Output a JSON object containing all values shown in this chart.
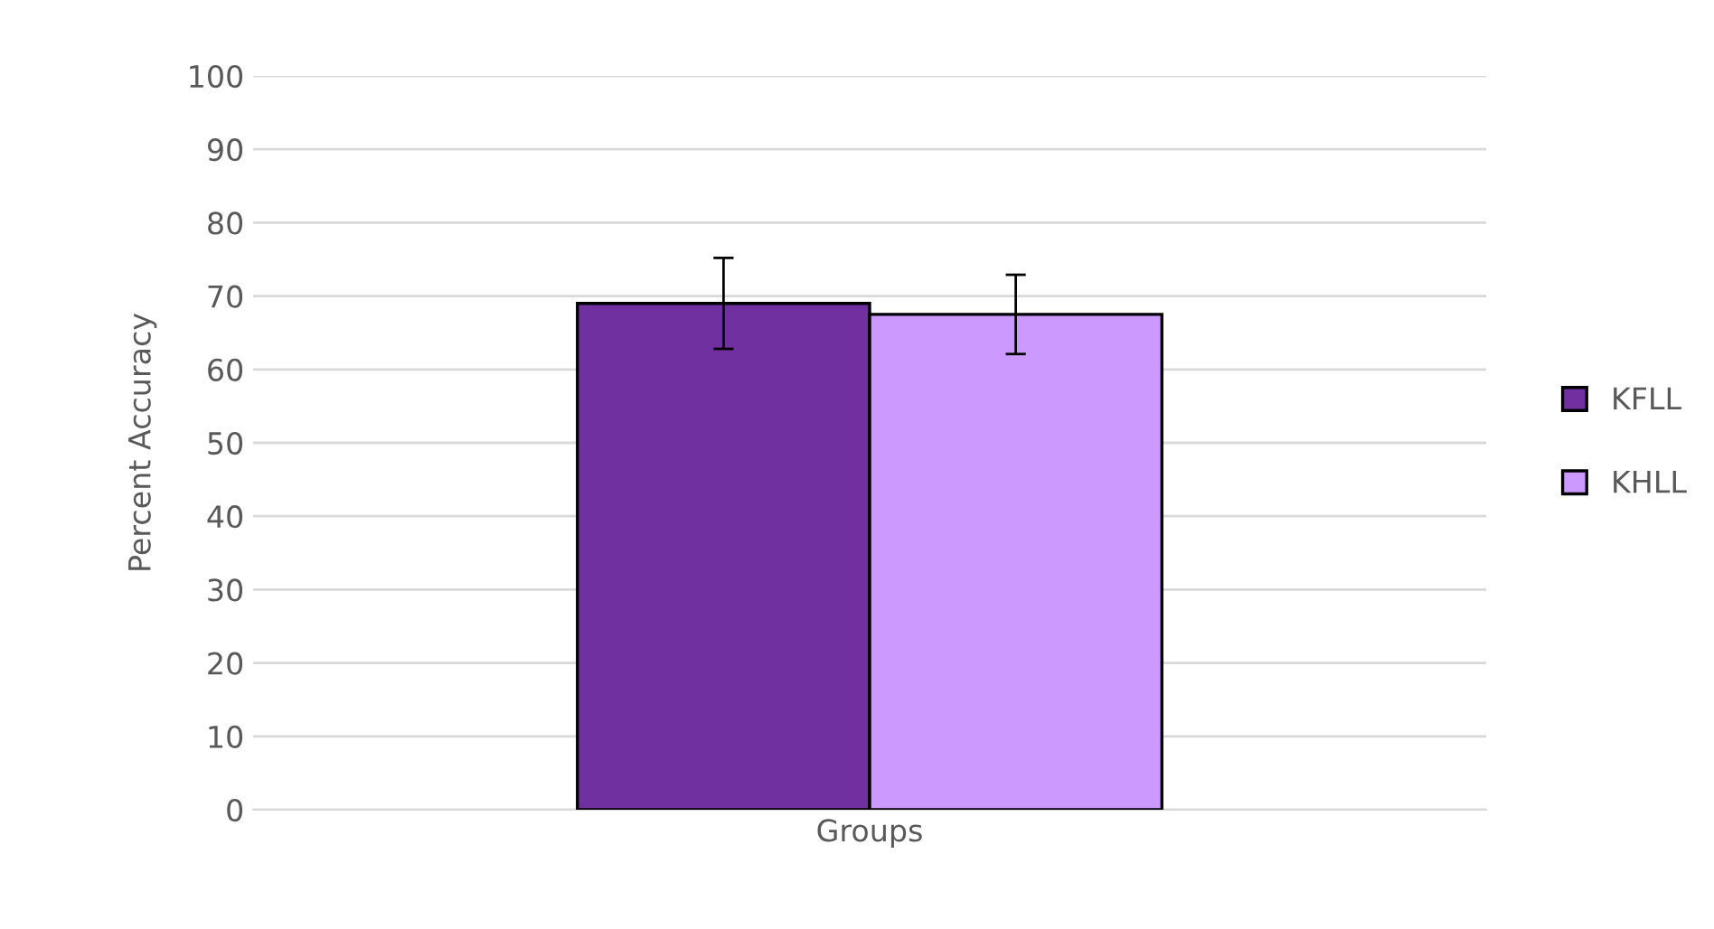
{
  "chart_data": {
    "type": "bar",
    "ylabel": "Percent Accuracy",
    "categories": [
      "Groups"
    ],
    "series": [
      {
        "name": "KFLL",
        "color": "#7030a0",
        "values": [
          69
        ],
        "errors": [
          6.2
        ]
      },
      {
        "name": "KHLL",
        "color": "#cc99ff",
        "values": [
          67.5
        ],
        "errors": [
          5.4
        ]
      }
    ],
    "ylim": [
      0,
      100
    ],
    "yticks": [
      0,
      10,
      20,
      30,
      40,
      50,
      60,
      70,
      80,
      90,
      100
    ],
    "grid": "y",
    "legend": "right"
  }
}
